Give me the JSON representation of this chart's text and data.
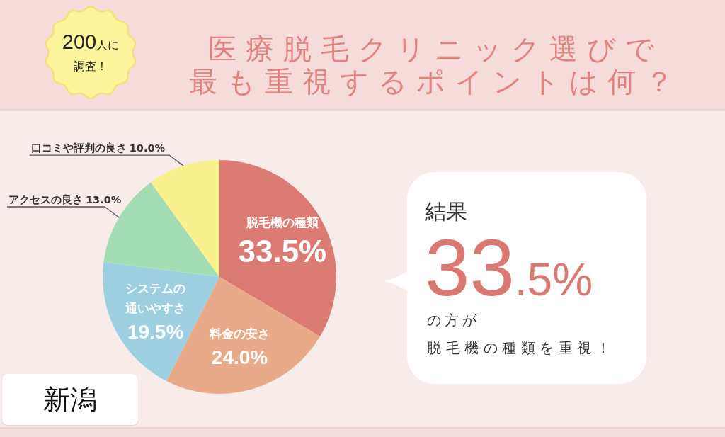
{
  "chart_data": {
    "type": "pie",
    "title": "医療脱毛クリニック選びで最も重視するポイントは何？",
    "categories": [
      "脱毛機の種類",
      "料金の安さ",
      "システムの通いやすさ",
      "アクセスの良さ",
      "口コミや評判の良さ"
    ],
    "values": [
      33.5,
      24.0,
      19.5,
      13.0,
      10.0
    ],
    "colors": [
      "#dc7b73",
      "#e9aa8a",
      "#9ecfe1",
      "#a4dcb3",
      "#f8f18e"
    ],
    "value_labels": [
      "33.5%",
      "24.0%",
      "19.5%",
      "13.0%",
      "10.0%"
    ],
    "annotations": [
      "200人に調査！",
      "新潟",
      "結果",
      "33.5%",
      "の方が",
      "脱毛機の種類を重視！"
    ]
  }
}
